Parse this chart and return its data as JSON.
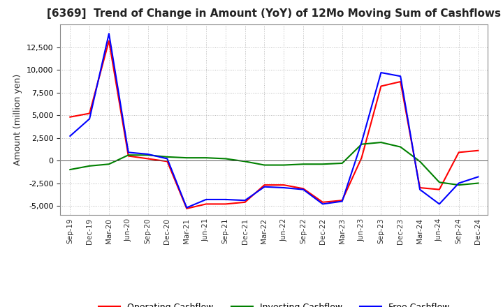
{
  "title": "[6369]  Trend of Change in Amount (YoY) of 12Mo Moving Sum of Cashflows",
  "ylabel": "Amount (million yen)",
  "xlabels": [
    "Sep-19",
    "Dec-19",
    "Mar-20",
    "Jun-20",
    "Sep-20",
    "Dec-20",
    "Mar-21",
    "Jun-21",
    "Sep-21",
    "Dec-21",
    "Mar-22",
    "Jun-22",
    "Sep-22",
    "Dec-22",
    "Mar-23",
    "Jun-23",
    "Sep-23",
    "Dec-23",
    "Mar-24",
    "Jun-24",
    "Sep-24",
    "Dec-24"
  ],
  "operating": [
    4800,
    5200,
    13200,
    500,
    200,
    -100,
    -5300,
    -4800,
    -4800,
    -4600,
    -2700,
    -2700,
    -3100,
    -4600,
    -4400,
    300,
    8200,
    8700,
    -3000,
    -3200,
    900,
    1100
  ],
  "investing": [
    -1000,
    -600,
    -400,
    600,
    600,
    400,
    300,
    300,
    200,
    -100,
    -500,
    -500,
    -400,
    -400,
    -300,
    1800,
    2000,
    1500,
    -100,
    -2400,
    -2700,
    -2500
  ],
  "free": [
    2700,
    4600,
    14000,
    900,
    700,
    200,
    -5200,
    -4300,
    -4300,
    -4400,
    -2900,
    -3000,
    -3200,
    -4800,
    -4500,
    2000,
    9700,
    9300,
    -3200,
    -4800,
    -2500,
    -1800
  ],
  "operating_color": "#ff0000",
  "investing_color": "#008000",
  "free_color": "#0000ff",
  "ylim": [
    -6000,
    15000
  ],
  "yticks": [
    -5000,
    -2500,
    0,
    2500,
    5000,
    7500,
    10000,
    12500
  ],
  "grid_color": "#aaaaaa",
  "bg_color": "#ffffff",
  "line_width": 1.5,
  "title_fontsize": 11
}
